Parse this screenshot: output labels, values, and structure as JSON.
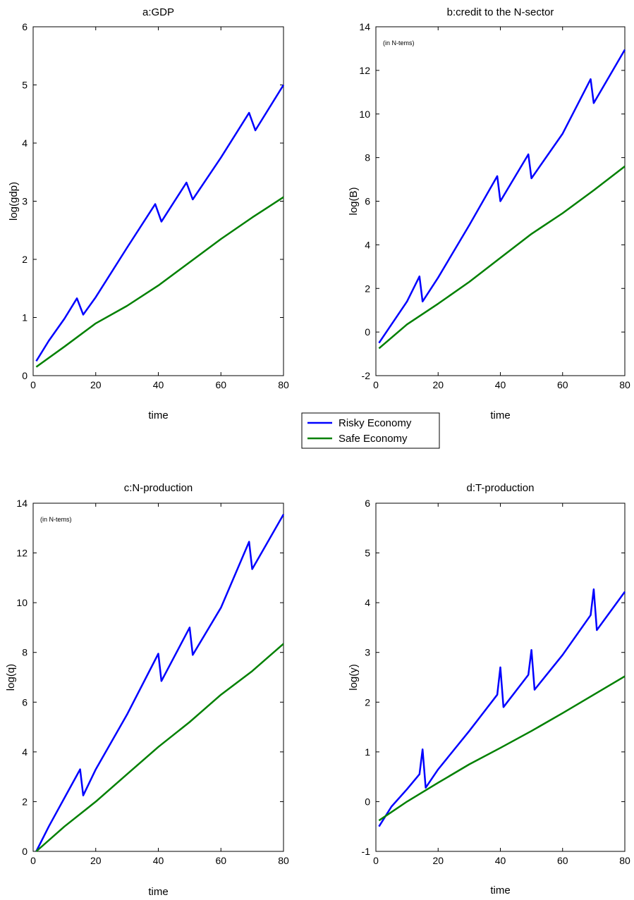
{
  "legend": {
    "entries": [
      {
        "label": "Risky Economy",
        "color": "#0000ff"
      },
      {
        "label": "Safe Economy",
        "color": "#008000"
      }
    ]
  },
  "chart_data": [
    {
      "type": "line",
      "title": "a:GDP",
      "xlabel": "time",
      "ylabel": "log(gdp)",
      "annotation": "",
      "xlim": [
        0,
        80
      ],
      "ylim": [
        0,
        6
      ],
      "xticks": [
        0,
        20,
        40,
        60,
        80
      ],
      "yticks": [
        0,
        1,
        2,
        3,
        4,
        5,
        6
      ],
      "grid": false,
      "series": [
        {
          "name": "Risky Economy",
          "color": "#0000ff",
          "points": [
            [
              1,
              0.25
            ],
            [
              5,
              0.6
            ],
            [
              10,
              0.98
            ],
            [
              14,
              1.33
            ],
            [
              16,
              1.05
            ],
            [
              20,
              1.35
            ],
            [
              30,
              2.2
            ],
            [
              39,
              2.95
            ],
            [
              41,
              2.65
            ],
            [
              49,
              3.32
            ],
            [
              51,
              3.03
            ],
            [
              60,
              3.75
            ],
            [
              69,
              4.52
            ],
            [
              71,
              4.22
            ],
            [
              80,
              5.0
            ]
          ]
        },
        {
          "name": "Safe Economy",
          "color": "#008000",
          "points": [
            [
              1,
              0.15
            ],
            [
              10,
              0.5
            ],
            [
              20,
              0.9
            ],
            [
              30,
              1.2
            ],
            [
              40,
              1.55
            ],
            [
              50,
              1.95
            ],
            [
              60,
              2.35
            ],
            [
              70,
              2.72
            ],
            [
              80,
              3.07
            ]
          ]
        }
      ]
    },
    {
      "type": "line",
      "title": "b:credit to the N-sector",
      "xlabel": "time",
      "ylabel": "log(B)",
      "annotation": "(in N-tems)",
      "xlim": [
        0,
        80
      ],
      "ylim": [
        -2,
        14
      ],
      "xticks": [
        0,
        20,
        40,
        60,
        80
      ],
      "yticks": [
        -2,
        0,
        2,
        4,
        6,
        8,
        10,
        12,
        14
      ],
      "grid": false,
      "series": [
        {
          "name": "Risky Economy",
          "color": "#0000ff",
          "points": [
            [
              1,
              -0.5
            ],
            [
              10,
              1.4
            ],
            [
              14,
              2.55
            ],
            [
              15,
              1.4
            ],
            [
              20,
              2.5
            ],
            [
              30,
              4.9
            ],
            [
              39,
              7.15
            ],
            [
              40,
              6.0
            ],
            [
              49,
              8.15
            ],
            [
              50,
              7.05
            ],
            [
              60,
              9.1
            ],
            [
              69,
              11.6
            ],
            [
              70,
              10.5
            ],
            [
              80,
              12.95
            ]
          ]
        },
        {
          "name": "Safe Economy",
          "color": "#008000",
          "points": [
            [
              1,
              -0.75
            ],
            [
              10,
              0.35
            ],
            [
              20,
              1.3
            ],
            [
              30,
              2.3
            ],
            [
              40,
              3.4
            ],
            [
              50,
              4.5
            ],
            [
              60,
              5.45
            ],
            [
              70,
              6.5
            ],
            [
              80,
              7.6
            ]
          ]
        }
      ]
    },
    {
      "type": "line",
      "title": "c:N-production",
      "xlabel": "time",
      "ylabel": "log(q)",
      "annotation": "(in N-tems)",
      "xlim": [
        0,
        80
      ],
      "ylim": [
        0,
        14
      ],
      "xticks": [
        0,
        20,
        40,
        60,
        80
      ],
      "yticks": [
        0,
        2,
        4,
        6,
        8,
        10,
        12,
        14
      ],
      "grid": false,
      "series": [
        {
          "name": "Risky Economy",
          "color": "#0000ff",
          "points": [
            [
              1,
              0.0
            ],
            [
              5,
              1.0
            ],
            [
              10,
              2.15
            ],
            [
              15,
              3.3
            ],
            [
              16,
              2.25
            ],
            [
              20,
              3.3
            ],
            [
              30,
              5.5
            ],
            [
              40,
              7.95
            ],
            [
              41,
              6.85
            ],
            [
              50,
              9.0
            ],
            [
              51,
              7.9
            ],
            [
              60,
              9.8
            ],
            [
              69,
              12.45
            ],
            [
              70,
              11.35
            ],
            [
              80,
              13.55
            ]
          ]
        },
        {
          "name": "Safe Economy",
          "color": "#008000",
          "points": [
            [
              1,
              0.0
            ],
            [
              10,
              1.0
            ],
            [
              20,
              2.0
            ],
            [
              30,
              3.1
            ],
            [
              40,
              4.2
            ],
            [
              50,
              5.2
            ],
            [
              60,
              6.3
            ],
            [
              70,
              7.25
            ],
            [
              80,
              8.35
            ]
          ]
        }
      ]
    },
    {
      "type": "line",
      "title": "d:T-production",
      "xlabel": "time",
      "ylabel": "log(y)",
      "annotation": "",
      "xlim": [
        0,
        80
      ],
      "ylim": [
        -1,
        6
      ],
      "xticks": [
        0,
        20,
        40,
        60,
        80
      ],
      "yticks": [
        -1,
        0,
        1,
        2,
        3,
        4,
        5,
        6
      ],
      "grid": false,
      "series": [
        {
          "name": "Risky Economy",
          "color": "#0000ff",
          "points": [
            [
              1,
              -0.5
            ],
            [
              5,
              -0.1
            ],
            [
              10,
              0.25
            ],
            [
              14,
              0.55
            ],
            [
              15,
              1.05
            ],
            [
              16,
              0.28
            ],
            [
              20,
              0.65
            ],
            [
              30,
              1.42
            ],
            [
              39,
              2.15
            ],
            [
              40,
              2.7
            ],
            [
              41,
              1.9
            ],
            [
              49,
              2.55
            ],
            [
              50,
              3.05
            ],
            [
              51,
              2.25
            ],
            [
              60,
              2.95
            ],
            [
              69,
              3.75
            ],
            [
              70,
              4.27
            ],
            [
              71,
              3.45
            ],
            [
              80,
              4.22
            ]
          ]
        },
        {
          "name": "Safe Economy",
          "color": "#008000",
          "points": [
            [
              1,
              -0.38
            ],
            [
              10,
              0.0
            ],
            [
              20,
              0.38
            ],
            [
              30,
              0.75
            ],
            [
              40,
              1.08
            ],
            [
              50,
              1.42
            ],
            [
              60,
              1.78
            ],
            [
              70,
              2.15
            ],
            [
              80,
              2.52
            ]
          ]
        }
      ]
    }
  ]
}
